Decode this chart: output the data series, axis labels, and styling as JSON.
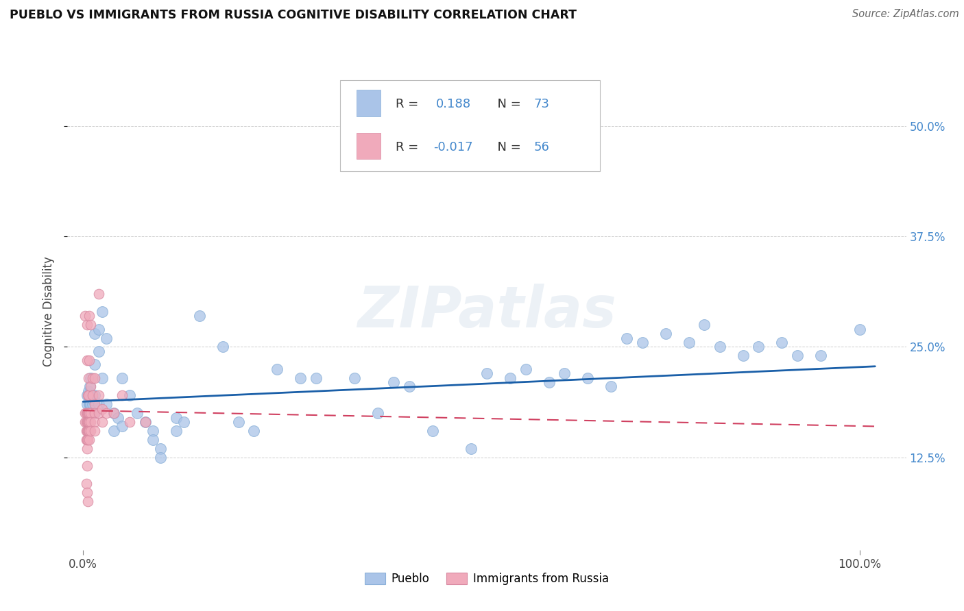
{
  "title": "PUEBLO VS IMMIGRANTS FROM RUSSIA COGNITIVE DISABILITY CORRELATION CHART",
  "source": "Source: ZipAtlas.com",
  "ylabel": "Cognitive Disability",
  "pueblo_color": "#aac4e8",
  "russia_color": "#f0aabb",
  "trend_pueblo_color": "#1a5fa8",
  "trend_russia_color": "#d04060",
  "ytick_vals": [
    0.125,
    0.25,
    0.375,
    0.5
  ],
  "ytick_labels": [
    "12.5%",
    "25.0%",
    "37.5%",
    "50.0%"
  ],
  "ylim": [
    0.02,
    0.56
  ],
  "xlim": [
    -0.02,
    1.06
  ],
  "watermark": "ZIPatlas",
  "pueblo_points": [
    [
      0.005,
      0.195
    ],
    [
      0.005,
      0.185
    ],
    [
      0.007,
      0.2
    ],
    [
      0.007,
      0.175
    ],
    [
      0.008,
      0.185
    ],
    [
      0.008,
      0.175
    ],
    [
      0.009,
      0.205
    ],
    [
      0.009,
      0.185
    ],
    [
      0.01,
      0.215
    ],
    [
      0.01,
      0.195
    ],
    [
      0.01,
      0.185
    ],
    [
      0.01,
      0.175
    ],
    [
      0.012,
      0.185
    ],
    [
      0.012,
      0.175
    ],
    [
      0.013,
      0.19
    ],
    [
      0.015,
      0.265
    ],
    [
      0.015,
      0.23
    ],
    [
      0.015,
      0.195
    ],
    [
      0.015,
      0.175
    ],
    [
      0.02,
      0.27
    ],
    [
      0.02,
      0.245
    ],
    [
      0.02,
      0.185
    ],
    [
      0.025,
      0.29
    ],
    [
      0.025,
      0.215
    ],
    [
      0.03,
      0.26
    ],
    [
      0.03,
      0.185
    ],
    [
      0.04,
      0.175
    ],
    [
      0.04,
      0.155
    ],
    [
      0.045,
      0.17
    ],
    [
      0.05,
      0.215
    ],
    [
      0.05,
      0.16
    ],
    [
      0.06,
      0.195
    ],
    [
      0.07,
      0.175
    ],
    [
      0.08,
      0.165
    ],
    [
      0.09,
      0.155
    ],
    [
      0.09,
      0.145
    ],
    [
      0.1,
      0.135
    ],
    [
      0.1,
      0.125
    ],
    [
      0.12,
      0.17
    ],
    [
      0.12,
      0.155
    ],
    [
      0.13,
      0.165
    ],
    [
      0.15,
      0.285
    ],
    [
      0.18,
      0.25
    ],
    [
      0.2,
      0.165
    ],
    [
      0.22,
      0.155
    ],
    [
      0.25,
      0.225
    ],
    [
      0.28,
      0.215
    ],
    [
      0.3,
      0.215
    ],
    [
      0.35,
      0.215
    ],
    [
      0.38,
      0.175
    ],
    [
      0.4,
      0.21
    ],
    [
      0.42,
      0.205
    ],
    [
      0.45,
      0.155
    ],
    [
      0.5,
      0.135
    ],
    [
      0.52,
      0.22
    ],
    [
      0.55,
      0.215
    ],
    [
      0.57,
      0.225
    ],
    [
      0.6,
      0.21
    ],
    [
      0.62,
      0.22
    ],
    [
      0.65,
      0.215
    ],
    [
      0.68,
      0.205
    ],
    [
      0.7,
      0.26
    ],
    [
      0.72,
      0.255
    ],
    [
      0.75,
      0.265
    ],
    [
      0.78,
      0.255
    ],
    [
      0.8,
      0.275
    ],
    [
      0.82,
      0.25
    ],
    [
      0.85,
      0.24
    ],
    [
      0.87,
      0.25
    ],
    [
      0.9,
      0.255
    ],
    [
      0.92,
      0.24
    ],
    [
      0.95,
      0.24
    ],
    [
      1.0,
      0.27
    ]
  ],
  "russia_points": [
    [
      0.003,
      0.285
    ],
    [
      0.003,
      0.175
    ],
    [
      0.003,
      0.165
    ],
    [
      0.004,
      0.175
    ],
    [
      0.004,
      0.165
    ],
    [
      0.004,
      0.155
    ],
    [
      0.004,
      0.145
    ],
    [
      0.004,
      0.095
    ],
    [
      0.005,
      0.275
    ],
    [
      0.005,
      0.235
    ],
    [
      0.005,
      0.175
    ],
    [
      0.005,
      0.165
    ],
    [
      0.005,
      0.155
    ],
    [
      0.005,
      0.145
    ],
    [
      0.005,
      0.135
    ],
    [
      0.005,
      0.115
    ],
    [
      0.005,
      0.085
    ],
    [
      0.006,
      0.195
    ],
    [
      0.006,
      0.175
    ],
    [
      0.006,
      0.165
    ],
    [
      0.006,
      0.155
    ],
    [
      0.006,
      0.145
    ],
    [
      0.006,
      0.075
    ],
    [
      0.007,
      0.215
    ],
    [
      0.007,
      0.195
    ],
    [
      0.007,
      0.175
    ],
    [
      0.007,
      0.165
    ],
    [
      0.007,
      0.155
    ],
    [
      0.008,
      0.285
    ],
    [
      0.008,
      0.235
    ],
    [
      0.008,
      0.175
    ],
    [
      0.008,
      0.165
    ],
    [
      0.008,
      0.155
    ],
    [
      0.008,
      0.145
    ],
    [
      0.01,
      0.275
    ],
    [
      0.01,
      0.205
    ],
    [
      0.01,
      0.175
    ],
    [
      0.01,
      0.165
    ],
    [
      0.01,
      0.155
    ],
    [
      0.012,
      0.215
    ],
    [
      0.012,
      0.195
    ],
    [
      0.015,
      0.215
    ],
    [
      0.015,
      0.185
    ],
    [
      0.015,
      0.175
    ],
    [
      0.015,
      0.165
    ],
    [
      0.015,
      0.155
    ],
    [
      0.02,
      0.31
    ],
    [
      0.02,
      0.195
    ],
    [
      0.02,
      0.175
    ],
    [
      0.025,
      0.18
    ],
    [
      0.025,
      0.165
    ],
    [
      0.03,
      0.175
    ],
    [
      0.04,
      0.175
    ],
    [
      0.05,
      0.195
    ],
    [
      0.06,
      0.165
    ],
    [
      0.08,
      0.165
    ]
  ],
  "pueblo_trend_x": [
    0.0,
    1.02
  ],
  "pueblo_trend_y": [
    0.188,
    0.228
  ],
  "russia_trend_x": [
    0.0,
    1.02
  ],
  "russia_trend_y": [
    0.178,
    0.16
  ]
}
